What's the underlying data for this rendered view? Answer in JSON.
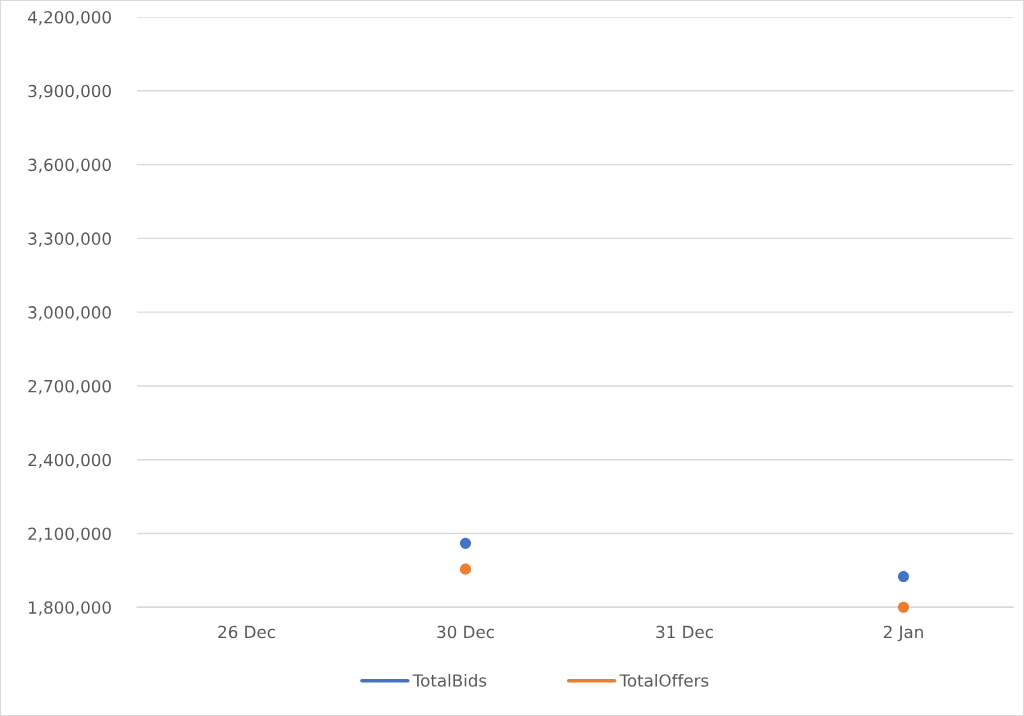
{
  "chart_data": {
    "type": "scatter",
    "categories": [
      "26 Dec",
      "30 Dec",
      "31 Dec",
      "2 Jan"
    ],
    "series": [
      {
        "name": "TotalBids",
        "color": "#4472c4",
        "values": [
          null,
          2060000,
          null,
          1925000
        ]
      },
      {
        "name": "TotalOffers",
        "color": "#ed7d31",
        "values": [
          null,
          1955000,
          null,
          1800000
        ]
      }
    ],
    "ylim": [
      1800000,
      4200000
    ],
    "yticks": [
      {
        "value": 1800000,
        "label": "1,800,000"
      },
      {
        "value": 2100000,
        "label": "2,100,000"
      },
      {
        "value": 2400000,
        "label": "2,400,000"
      },
      {
        "value": 2700000,
        "label": "2,700,000"
      },
      {
        "value": 3000000,
        "label": "3,000,000"
      },
      {
        "value": 3300000,
        "label": "3,300,000"
      },
      {
        "value": 3600000,
        "label": "3,600,000"
      },
      {
        "value": 3900000,
        "label": "3,900,000"
      },
      {
        "value": 4200000,
        "label": "4,200,000"
      }
    ],
    "grid": "y",
    "legend": "bottom",
    "marker": "circle"
  }
}
